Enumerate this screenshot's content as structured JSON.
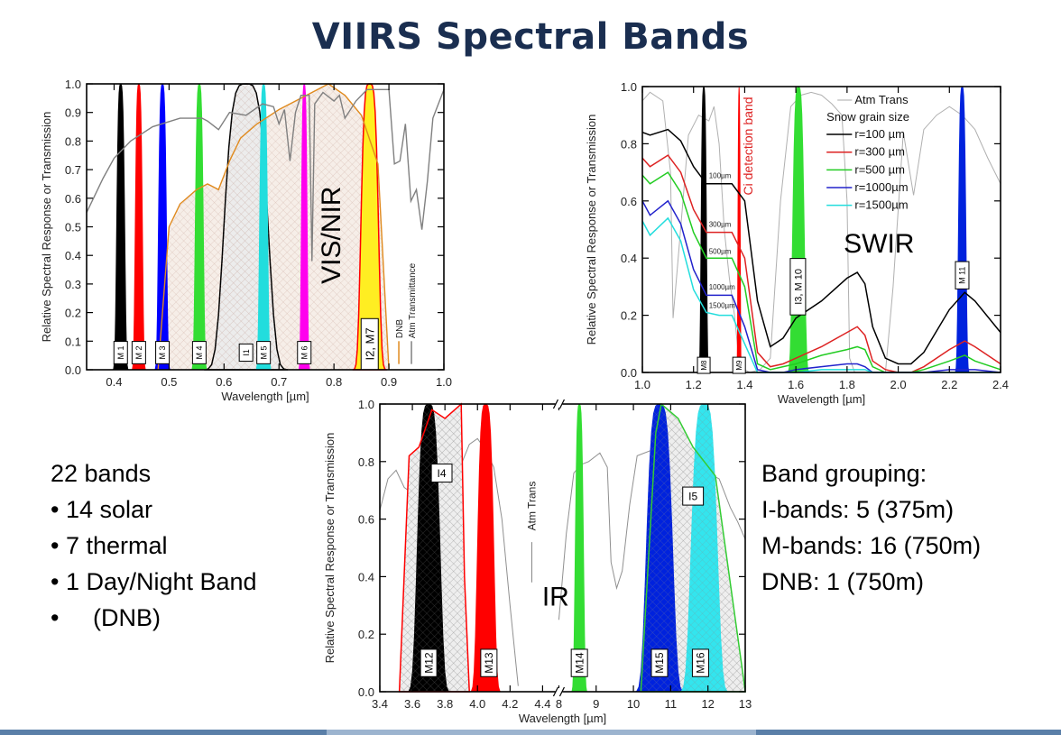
{
  "page": {
    "title": "VIIRS Spectral Bands",
    "left_summary": [
      "22 bands",
      "• 14 solar",
      "• 7 thermal",
      "• 1 Day/Night Band",
      "•     (DNB)"
    ],
    "right_summary": [
      "Band grouping:",
      "I-bands: 5 (375m)",
      "M-bands: 16 (750m)",
      "DNB: 1 (750m)"
    ],
    "colors": {
      "title": "#1a2e50",
      "footer_dark": "#5a7fa8",
      "footer_light": "#9cb4cf"
    }
  },
  "chart_data": [
    {
      "id": "visnir",
      "type": "area",
      "title": "",
      "region_label": "VIS/NIR",
      "xlabel": "Wavelength [µm]",
      "ylabel": "Relative Spectral Response or Transmission",
      "xlim": [
        0.35,
        1.0
      ],
      "ylim": [
        0.0,
        1.0
      ],
      "xticks": [
        "0.4",
        "0.5",
        "0.6",
        "0.7",
        "0.8",
        "0.9",
        "1.0"
      ],
      "yticks": [
        "0.0",
        "0.1",
        "0.2",
        "0.3",
        "0.4",
        "0.5",
        "0.6",
        "0.7",
        "0.8",
        "0.9",
        "1.0"
      ],
      "grid": false,
      "legend": {
        "position": "lower-right-vertical",
        "entries": [
          {
            "name": "DNB",
            "color": "#e08a1e"
          },
          {
            "name": "Atm Transmittance",
            "color": "#808080"
          }
        ]
      },
      "bands": [
        {
          "label": "M 1",
          "center": 0.412,
          "width": 0.02,
          "color": "#000000"
        },
        {
          "label": "M 2",
          "center": 0.445,
          "width": 0.018,
          "color": "#ff0000"
        },
        {
          "label": "M 3",
          "center": 0.488,
          "width": 0.02,
          "color": "#0000ff"
        },
        {
          "label": "M 4",
          "center": 0.555,
          "width": 0.02,
          "color": "#33dd33"
        },
        {
          "label": "I1",
          "center": 0.64,
          "width": 0.08,
          "color": "#000000",
          "hatched": true
        },
        {
          "label": "M 5",
          "center": 0.672,
          "width": 0.02,
          "color": "#22dddd"
        },
        {
          "label": "M 6",
          "center": 0.746,
          "width": 0.015,
          "color": "#ff00ee"
        },
        {
          "label": "I2, M7",
          "center": 0.865,
          "width": 0.04,
          "color": "#ffee22",
          "edge": "#ff0000"
        }
      ],
      "series": [
        {
          "name": "DNB",
          "color": "#e08a1e",
          "x": [
            0.48,
            0.5,
            0.52,
            0.55,
            0.57,
            0.59,
            0.61,
            0.63,
            0.66,
            0.7,
            0.74,
            0.79,
            0.82,
            0.85,
            0.88,
            0.9
          ],
          "y": [
            0.0,
            0.5,
            0.58,
            0.63,
            0.65,
            0.63,
            0.73,
            0.81,
            0.86,
            0.91,
            0.95,
            1.0,
            0.96,
            0.89,
            0.72,
            0.0
          ]
        },
        {
          "name": "Atm Transmittance",
          "color": "#808080",
          "x": [
            0.35,
            0.38,
            0.4,
            0.43,
            0.47,
            0.52,
            0.56,
            0.57,
            0.59,
            0.61,
            0.64,
            0.67,
            0.69,
            0.7,
            0.71,
            0.72,
            0.73,
            0.74,
            0.755,
            0.76,
            0.765,
            0.78,
            0.8,
            0.81,
            0.82,
            0.84,
            0.86,
            0.88,
            0.9,
            0.91,
            0.92,
            0.93,
            0.94,
            0.95,
            0.96,
            0.97,
            0.98,
            1.0
          ],
          "y": [
            0.55,
            0.67,
            0.74,
            0.8,
            0.85,
            0.88,
            0.88,
            0.87,
            0.84,
            0.9,
            0.89,
            0.93,
            0.92,
            0.86,
            0.91,
            0.73,
            0.9,
            0.96,
            0.96,
            0.38,
            0.93,
            0.97,
            0.94,
            0.96,
            0.88,
            0.94,
            0.98,
            0.98,
            0.98,
            0.72,
            0.73,
            0.86,
            0.59,
            0.63,
            0.49,
            0.66,
            0.88,
            0.98
          ]
        }
      ]
    },
    {
      "id": "swir",
      "type": "line",
      "region_label": "SWIR",
      "annotation": "Ci detection band",
      "xlabel": "Wavelength [µm]",
      "ylabel": "Relative Spectral Response or Transmission",
      "xlim": [
        1.0,
        2.4
      ],
      "ylim": [
        0.0,
        1.0
      ],
      "xticks": [
        "1.0",
        "1.2",
        "1.4",
        "1.6",
        "1.8",
        "2.0",
        "2.2",
        "2.4"
      ],
      "yticks": [
        "0.0",
        "0.2",
        "0.4",
        "0.6",
        "0.8",
        "1.0"
      ],
      "grid": false,
      "legend": {
        "position": "upper-right",
        "heading": "Snow grain size",
        "entries": [
          {
            "name": "Atm Trans",
            "color": "#aaaaaa"
          },
          {
            "name": "r=100 µm",
            "color": "#000000"
          },
          {
            "name": "r=300 µm",
            "color": "#dd2222"
          },
          {
            "name": "r=500 µm",
            "color": "#22cc22"
          },
          {
            "name": "r=1000µm",
            "color": "#2222cc"
          },
          {
            "name": "r=1500µm",
            "color": "#22dddd"
          }
        ]
      },
      "inline_labels": [
        "100µm",
        "300µm",
        "500µm",
        "1000µm",
        "1500µm"
      ],
      "bands": [
        {
          "label": "M8",
          "center": 1.24,
          "width": 0.03,
          "color": "#000000"
        },
        {
          "label": "M9",
          "center": 1.378,
          "width": 0.015,
          "color": "#ff0000"
        },
        {
          "label": "I3, M 10",
          "center": 1.61,
          "width": 0.06,
          "color": "#33dd33"
        },
        {
          "label": "M 11",
          "center": 2.25,
          "width": 0.04,
          "color": "#0022dd"
        }
      ],
      "x": [
        1.0,
        1.03,
        1.1,
        1.15,
        1.2,
        1.25,
        1.3,
        1.35,
        1.4,
        1.45,
        1.5,
        1.55,
        1.6,
        1.7,
        1.8,
        1.84,
        1.87,
        1.9,
        1.95,
        2.0,
        2.05,
        2.1,
        2.2,
        2.26,
        2.3,
        2.4
      ],
      "series": [
        {
          "name": "r=100 µm",
          "values": [
            0.84,
            0.83,
            0.85,
            0.81,
            0.72,
            0.66,
            0.66,
            0.66,
            0.6,
            0.25,
            0.09,
            0.12,
            0.19,
            0.25,
            0.33,
            0.35,
            0.31,
            0.16,
            0.05,
            0.03,
            0.03,
            0.07,
            0.22,
            0.28,
            0.25,
            0.14
          ]
        },
        {
          "name": "r=300 µm",
          "values": [
            0.75,
            0.72,
            0.76,
            0.7,
            0.57,
            0.49,
            0.49,
            0.49,
            0.4,
            0.07,
            0.02,
            0.03,
            0.05,
            0.09,
            0.14,
            0.16,
            0.13,
            0.04,
            0.01,
            0.0,
            0.0,
            0.02,
            0.08,
            0.11,
            0.09,
            0.03
          ]
        },
        {
          "name": "r=500 µm",
          "values": [
            0.69,
            0.66,
            0.7,
            0.63,
            0.49,
            0.4,
            0.4,
            0.4,
            0.3,
            0.03,
            0.01,
            0.02,
            0.03,
            0.06,
            0.08,
            0.09,
            0.08,
            0.02,
            0.0,
            0.0,
            0.0,
            0.01,
            0.04,
            0.06,
            0.04,
            0.01
          ]
        },
        {
          "name": "r=1000µm",
          "values": [
            0.6,
            0.55,
            0.6,
            0.52,
            0.36,
            0.27,
            0.27,
            0.27,
            0.16,
            0.01,
            0.0,
            0.0,
            0.01,
            0.02,
            0.03,
            0.03,
            0.02,
            0.0,
            0.0,
            0.0,
            0.0,
            0.0,
            0.01,
            0.01,
            0.01,
            0.0
          ]
        },
        {
          "name": "r=1500µm",
          "values": [
            0.53,
            0.48,
            0.54,
            0.46,
            0.29,
            0.21,
            0.2,
            0.2,
            0.1,
            0.0,
            0.0,
            0.0,
            0.0,
            0.01,
            0.01,
            0.01,
            0.01,
            0.0,
            0.0,
            0.0,
            0.0,
            0.0,
            0.0,
            0.0,
            0.0,
            0.0
          ]
        }
      ],
      "atm_trans": {
        "x": [
          1.0,
          1.03,
          1.08,
          1.11,
          1.12,
          1.14,
          1.18,
          1.22,
          1.26,
          1.28,
          1.3,
          1.32,
          1.34,
          1.36,
          1.38,
          1.42,
          1.46,
          1.5,
          1.54,
          1.58,
          1.62,
          1.66,
          1.7,
          1.74,
          1.78,
          1.8,
          1.81,
          1.83,
          1.86,
          1.88,
          1.92,
          1.95,
          1.98,
          2.02,
          2.06,
          2.1,
          2.15,
          2.2,
          2.25,
          2.3,
          2.35,
          2.4
        ],
        "y": [
          0.95,
          0.98,
          0.95,
          0.7,
          0.19,
          0.4,
          0.83,
          0.9,
          0.88,
          0.93,
          0.8,
          0.5,
          0.33,
          0.2,
          0.02,
          0.0,
          0.01,
          0.05,
          0.6,
          0.93,
          0.97,
          0.98,
          0.97,
          0.94,
          0.9,
          0.6,
          0.05,
          0.0,
          0.0,
          0.0,
          0.0,
          0.0,
          0.3,
          0.84,
          0.62,
          0.85,
          0.9,
          0.93,
          0.9,
          0.85,
          0.75,
          0.66
        ]
      }
    },
    {
      "id": "ir",
      "type": "area",
      "region_label": "IR",
      "xlabel": "Wavelength [µm]",
      "ylabel": "Relative Spectral Response or Transmission",
      "xlim_segments": [
        [
          3.4,
          4.5
        ],
        [
          8.0,
          13.0
        ]
      ],
      "axis_break": "//",
      "ylim": [
        0.0,
        1.0
      ],
      "xticks": [
        "3.4",
        "3.6",
        "3.8",
        "4.0",
        "4.2",
        "4.4",
        "8",
        "9",
        "10",
        "11",
        "12",
        "13"
      ],
      "yticks": [
        "0.0",
        "0.2",
        "0.4",
        "0.6",
        "0.8",
        "1.0"
      ],
      "grid": false,
      "legend": {
        "position": "center-vertical",
        "entries": [
          {
            "name": "Atm Trans",
            "color": "#808080"
          }
        ]
      },
      "bands": [
        {
          "label": "I4",
          "range": [
            3.55,
            3.93
          ],
          "color": "#ff0000",
          "type": "outline",
          "hatched": true
        },
        {
          "label": "M12",
          "center": 3.7,
          "width": 0.18,
          "color": "#000000",
          "hatched": true
        },
        {
          "label": "M13",
          "center": 4.05,
          "width": 0.13,
          "color": "#ff0000"
        },
        {
          "label": "M14",
          "center": 8.55,
          "width": 0.3,
          "color": "#33dd33"
        },
        {
          "label": "I5",
          "range": [
            10.3,
            12.4
          ],
          "color": "#33cc33",
          "type": "outline",
          "hatched": true
        },
        {
          "label": "M15",
          "center": 10.7,
          "width": 0.9,
          "color": "#0022dd",
          "hatched": true
        },
        {
          "label": "M16",
          "center": 11.9,
          "width": 0.9,
          "color": "#33e5ee",
          "hatched": true
        }
      ]
    }
  ]
}
